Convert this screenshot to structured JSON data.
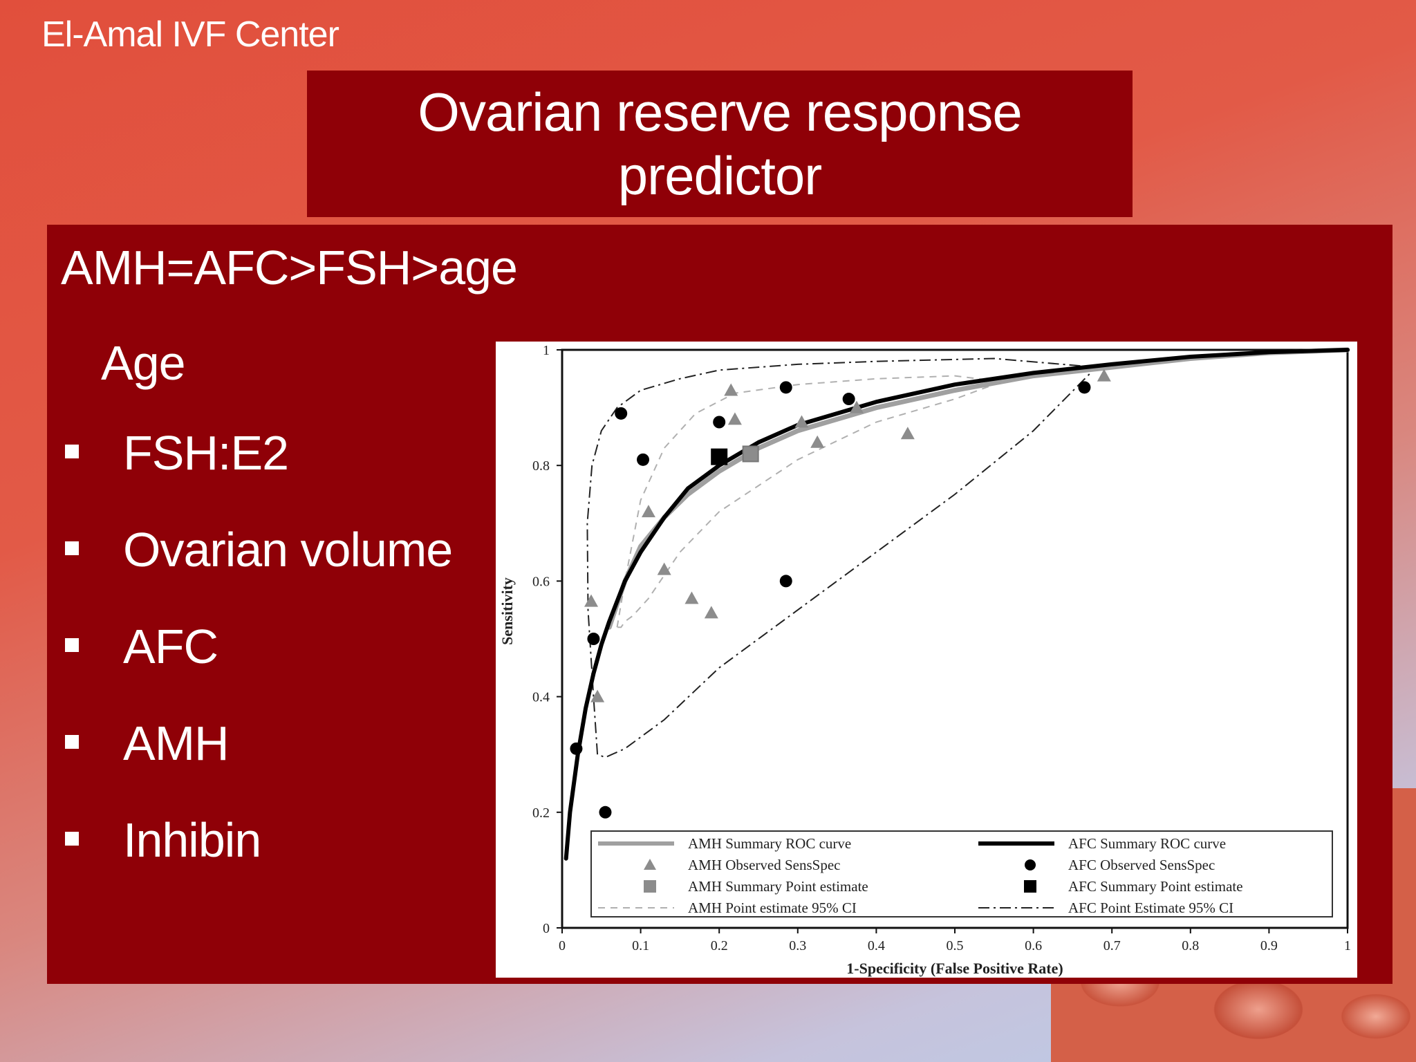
{
  "brand": "El-Amal IVF Center",
  "title": "Ovarian reserve response predictor",
  "headline": "AMH=AFC>FSH>age",
  "sub_item": "Age",
  "bullets": [
    {
      "label": "FSH:E2"
    },
    {
      "label": "Ovarian volume"
    },
    {
      "label": "AFC"
    },
    {
      "label": "AMH"
    },
    {
      "label": "Inhibin"
    }
  ],
  "colors": {
    "background_top": "#e14f3c",
    "background_bottom": "#b9cdea",
    "panel": "#8f0007",
    "text": "#ffffff"
  },
  "chart_data": {
    "type": "line",
    "xlabel": "1-Specificity (False Positive Rate)",
    "ylabel": "Sensitivity",
    "xlim": [
      0,
      1
    ],
    "ylim": [
      0,
      1
    ],
    "xticks": [
      "0",
      "0.1",
      "0.2",
      "0.3",
      "0.4",
      "0.5",
      "0.6",
      "0.7",
      "0.8",
      "0.9",
      "1"
    ],
    "yticks": [
      "0",
      "0.2",
      "0.4",
      "0.6",
      "0.8",
      "1"
    ],
    "grid": false,
    "legend_position": "bottom",
    "legend": [
      {
        "label": "AMH Summary ROC curve",
        "symbol": "gray-line"
      },
      {
        "label": "AFC Summary ROC curve",
        "symbol": "black-line"
      },
      {
        "label": "AMH Observed SensSpec",
        "symbol": "gray-triangle"
      },
      {
        "label": "AFC Observed SensSpec",
        "symbol": "black-circle"
      },
      {
        "label": "AMH Summary Point estimate",
        "symbol": "gray-square"
      },
      {
        "label": "AFC Summary Point estimate",
        "symbol": "black-square"
      },
      {
        "label": "AMH Point estimate 95% CI",
        "symbol": "gray-dashed"
      },
      {
        "label": "AFC Point Estimate 95% CI",
        "symbol": "black-dashdot"
      }
    ],
    "series": [
      {
        "name": "AMH Summary ROC curve",
        "style": "line",
        "color": "#a0a0a0",
        "x": [
          0.06,
          0.07,
          0.08,
          0.1,
          0.13,
          0.16,
          0.2,
          0.25,
          0.3,
          0.4,
          0.5,
          0.6,
          0.7,
          0.8,
          0.9,
          1.0
        ],
        "y": [
          0.52,
          0.56,
          0.6,
          0.66,
          0.71,
          0.75,
          0.79,
          0.83,
          0.86,
          0.9,
          0.93,
          0.955,
          0.97,
          0.985,
          0.995,
          1.0
        ]
      },
      {
        "name": "AFC Summary ROC curve",
        "style": "line",
        "color": "#000000",
        "x": [
          0.005,
          0.01,
          0.02,
          0.03,
          0.04,
          0.05,
          0.06,
          0.08,
          0.1,
          0.13,
          0.16,
          0.2,
          0.25,
          0.3,
          0.4,
          0.5,
          0.6,
          0.7,
          0.8,
          0.9,
          1.0
        ],
        "y": [
          0.12,
          0.2,
          0.3,
          0.38,
          0.44,
          0.49,
          0.53,
          0.6,
          0.65,
          0.71,
          0.76,
          0.8,
          0.84,
          0.87,
          0.91,
          0.94,
          0.96,
          0.975,
          0.988,
          0.996,
          1.0
        ]
      },
      {
        "name": "AMH Observed SensSpec",
        "style": "triangle",
        "color": "#8c8c8c",
        "x": [
          0.037,
          0.045,
          0.11,
          0.13,
          0.165,
          0.19,
          0.215,
          0.22,
          0.305,
          0.325,
          0.375,
          0.44,
          0.69
        ],
        "y": [
          0.565,
          0.4,
          0.72,
          0.62,
          0.57,
          0.545,
          0.93,
          0.88,
          0.875,
          0.84,
          0.9,
          0.855,
          0.955
        ]
      },
      {
        "name": "AFC Observed SensSpec",
        "style": "circle",
        "color": "#000000",
        "x": [
          0.018,
          0.04,
          0.055,
          0.075,
          0.103,
          0.2,
          0.285,
          0.285,
          0.365,
          0.665
        ],
        "y": [
          0.31,
          0.5,
          0.2,
          0.89,
          0.81,
          0.875,
          0.935,
          0.6,
          0.915,
          0.935
        ]
      },
      {
        "name": "AMH Summary Point estimate",
        "style": "square",
        "color": "#8c8c8c",
        "x": [
          0.24
        ],
        "y": [
          0.82
        ]
      },
      {
        "name": "AFC Summary Point estimate",
        "style": "square",
        "color": "#000000",
        "x": [
          0.2
        ],
        "y": [
          0.815
        ]
      }
    ],
    "ci_regions": [
      {
        "name": "AMH Point estimate 95% CI",
        "style": "dashed",
        "color": "#b0b0b0",
        "x": [
          0.07,
          0.08,
          0.1,
          0.13,
          0.17,
          0.22,
          0.3,
          0.4,
          0.5,
          0.56,
          0.5,
          0.4,
          0.3,
          0.2,
          0.15,
          0.11,
          0.09,
          0.08,
          0.075,
          0.07
        ],
        "y": [
          0.52,
          0.6,
          0.74,
          0.83,
          0.89,
          0.925,
          0.94,
          0.95,
          0.955,
          0.945,
          0.915,
          0.875,
          0.81,
          0.72,
          0.65,
          0.57,
          0.54,
          0.53,
          0.52,
          0.52
        ]
      },
      {
        "name": "AFC Point Estimate 95% CI",
        "style": "dashdot",
        "color": "#222222",
        "x": [
          0.045,
          0.04,
          0.033,
          0.032,
          0.038,
          0.05,
          0.07,
          0.1,
          0.15,
          0.2,
          0.3,
          0.4,
          0.55,
          0.68,
          0.6,
          0.5,
          0.4,
          0.3,
          0.2,
          0.13,
          0.08,
          0.055,
          0.045
        ],
        "y": [
          0.3,
          0.4,
          0.55,
          0.7,
          0.8,
          0.86,
          0.9,
          0.93,
          0.95,
          0.965,
          0.975,
          0.98,
          0.985,
          0.97,
          0.86,
          0.75,
          0.65,
          0.55,
          0.45,
          0.36,
          0.31,
          0.295,
          0.3
        ]
      }
    ]
  }
}
